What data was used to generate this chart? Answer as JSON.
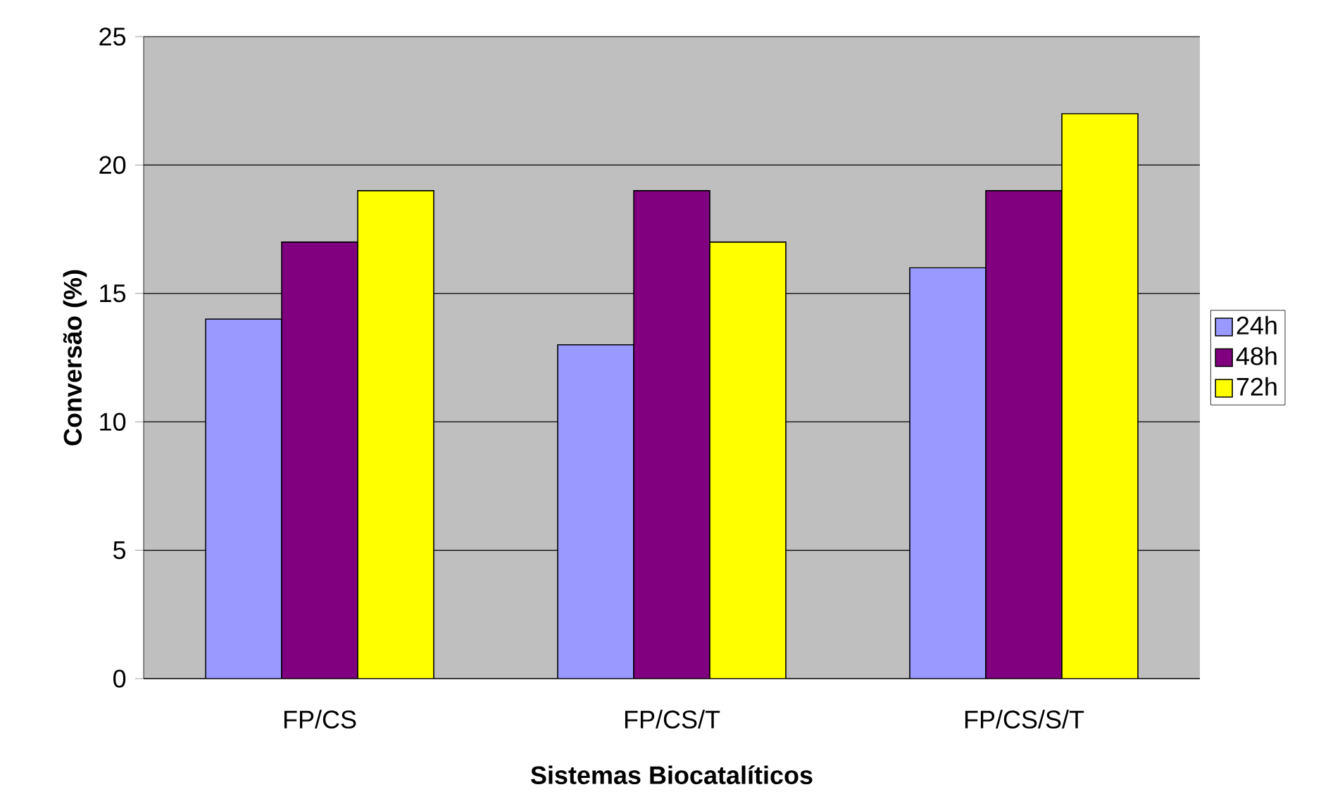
{
  "chart_data": {
    "type": "bar",
    "xlabel": "Sistemas Biocatalíticos",
    "ylabel": "Conversão (%)",
    "categories": [
      "FP/CS",
      "FP/CS/T",
      "FP/CS/S/T"
    ],
    "series": [
      {
        "name": "24h",
        "color": "#9999ff",
        "values": [
          14,
          13,
          16
        ]
      },
      {
        "name": "48h",
        "color": "#800080",
        "values": [
          17,
          19,
          19
        ]
      },
      {
        "name": "72h",
        "color": "#ffff00",
        "values": [
          19,
          17,
          22
        ]
      }
    ],
    "ylim": [
      0,
      25
    ],
    "yticks": [
      0,
      5,
      10,
      15,
      20,
      25
    ],
    "grid": "y",
    "legend": "right"
  }
}
